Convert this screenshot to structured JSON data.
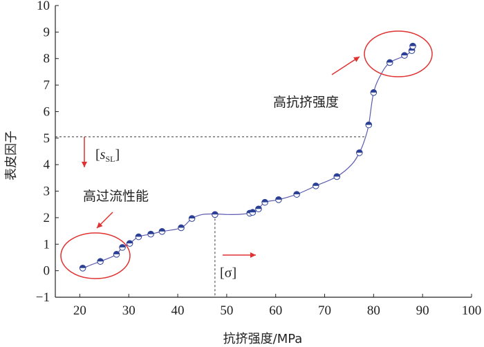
{
  "chart_data": {
    "type": "scatter",
    "xlabel": "抗挤强度/MPa",
    "ylabel": "表皮因子",
    "xlim": [
      15,
      100
    ],
    "ylim": [
      -1,
      10
    ],
    "x_ticks": [
      20,
      30,
      40,
      50,
      60,
      70,
      80,
      90,
      100
    ],
    "y_ticks": [
      -1,
      0,
      1,
      2,
      3,
      4,
      5,
      6,
      7,
      8,
      9,
      10
    ],
    "grid": false,
    "point_color": "#2b3f95",
    "curve_color": "#5a5ab0",
    "highlight_color": "#e03030",
    "points": [
      {
        "x": 20.6,
        "y": 0.1
      },
      {
        "x": 24.2,
        "y": 0.35
      },
      {
        "x": 27.5,
        "y": 0.62
      },
      {
        "x": 28.7,
        "y": 0.88
      },
      {
        "x": 30.2,
        "y": 1.03
      },
      {
        "x": 32.0,
        "y": 1.28
      },
      {
        "x": 34.5,
        "y": 1.38
      },
      {
        "x": 36.8,
        "y": 1.48
      },
      {
        "x": 40.7,
        "y": 1.62
      },
      {
        "x": 42.9,
        "y": 1.97
      },
      {
        "x": 47.6,
        "y": 2.12
      },
      {
        "x": 54.7,
        "y": 2.17
      },
      {
        "x": 55.3,
        "y": 2.2
      },
      {
        "x": 56.5,
        "y": 2.33
      },
      {
        "x": 57.8,
        "y": 2.58
      },
      {
        "x": 60.6,
        "y": 2.68
      },
      {
        "x": 64.3,
        "y": 2.88
      },
      {
        "x": 68.2,
        "y": 3.2
      },
      {
        "x": 72.5,
        "y": 3.55
      },
      {
        "x": 77.1,
        "y": 4.45
      },
      {
        "x": 79.0,
        "y": 5.5
      },
      {
        "x": 80.0,
        "y": 6.72
      },
      {
        "x": 83.3,
        "y": 7.85
      },
      {
        "x": 86.3,
        "y": 8.12
      },
      {
        "x": 87.8,
        "y": 8.3
      },
      {
        "x": 88.0,
        "y": 8.47
      }
    ],
    "curve": [
      {
        "x": 20.2,
        "y": 0.05
      },
      {
        "x": 22.0,
        "y": 0.2
      },
      {
        "x": 24.2,
        "y": 0.35
      },
      {
        "x": 26.0,
        "y": 0.48
      },
      {
        "x": 27.5,
        "y": 0.62
      },
      {
        "x": 28.7,
        "y": 0.88
      },
      {
        "x": 30.2,
        "y": 1.03
      },
      {
        "x": 32.0,
        "y": 1.28
      },
      {
        "x": 34.5,
        "y": 1.38
      },
      {
        "x": 36.8,
        "y": 1.48
      },
      {
        "x": 40.7,
        "y": 1.62
      },
      {
        "x": 42.9,
        "y": 1.97
      },
      {
        "x": 45.0,
        "y": 2.12
      },
      {
        "x": 47.6,
        "y": 2.14
      },
      {
        "x": 50.0,
        "y": 2.12
      },
      {
        "x": 53.0,
        "y": 2.13
      },
      {
        "x": 55.3,
        "y": 2.2
      },
      {
        "x": 56.5,
        "y": 2.33
      },
      {
        "x": 57.8,
        "y": 2.58
      },
      {
        "x": 60.6,
        "y": 2.68
      },
      {
        "x": 64.3,
        "y": 2.88
      },
      {
        "x": 68.2,
        "y": 3.2
      },
      {
        "x": 72.5,
        "y": 3.55
      },
      {
        "x": 75.5,
        "y": 4.0
      },
      {
        "x": 77.1,
        "y": 4.45
      },
      {
        "x": 78.2,
        "y": 4.95
      },
      {
        "x": 79.0,
        "y": 5.5
      },
      {
        "x": 80.0,
        "y": 6.72
      },
      {
        "x": 81.5,
        "y": 7.4
      },
      {
        "x": 83.3,
        "y": 7.85
      },
      {
        "x": 86.3,
        "y": 8.1
      },
      {
        "x": 87.8,
        "y": 8.3
      },
      {
        "x": 88.0,
        "y": 8.47
      }
    ],
    "threshold_y": 5.05,
    "threshold_x": 47.6,
    "annotations": {
      "high_flow": "高过流性能",
      "high_strength": "高抗挤强度",
      "ssl_open": "[",
      "ssl_s": "s",
      "ssl_sub": "SL",
      "ssl_close": "]",
      "sigma": "[σ]"
    }
  }
}
